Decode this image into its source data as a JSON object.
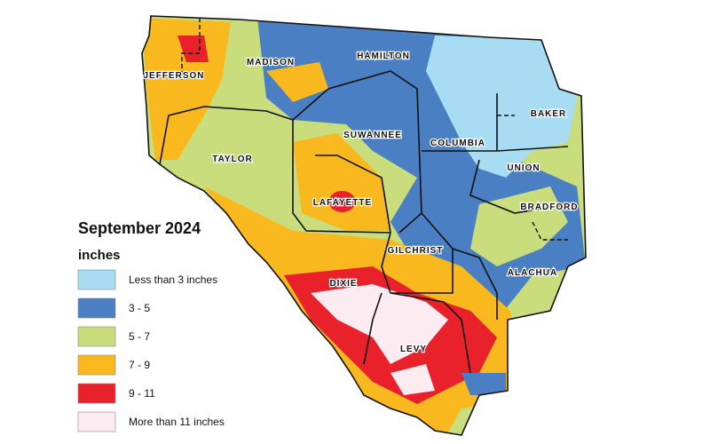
{
  "legend": {
    "title": "September 2024",
    "unit": "inches",
    "items": [
      {
        "label": "Less than 3 inches",
        "color": "#a7dcf3"
      },
      {
        "label": "3 - 5",
        "color": "#4a7fc4"
      },
      {
        "label": "5 - 7",
        "color": "#c9dd7c"
      },
      {
        "label": "7 - 9",
        "color": "#f9b81d"
      },
      {
        "label": "9 - 11",
        "color": "#e9212a"
      },
      {
        "label": "More than 11 inches",
        "color": "#fcecf2"
      }
    ]
  },
  "counties": [
    "JEFFERSON",
    "MADISON",
    "HAMILTON",
    "TAYLOR",
    "SUWANNEE",
    "COLUMBIA",
    "BAKER",
    "UNION",
    "BRADFORD",
    "LAFAYETTE",
    "GILCHRIST",
    "DIXIE",
    "ALACHUA",
    "LEVY"
  ]
}
